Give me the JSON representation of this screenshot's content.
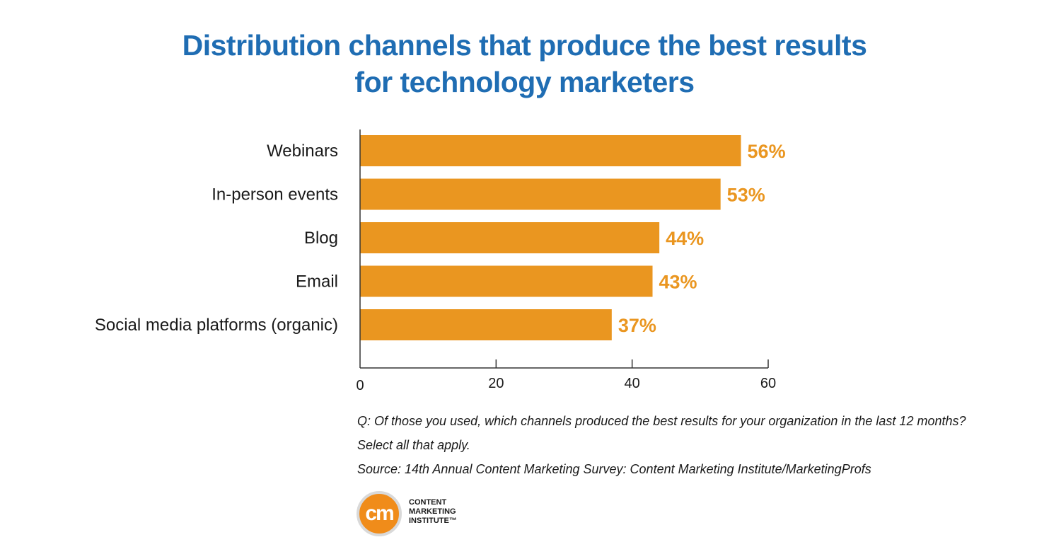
{
  "title": {
    "line1": "Distribution channels that produce the best results",
    "line2": "for technology marketers"
  },
  "colors": {
    "title": "#1f6db3",
    "bar": "#ea9620",
    "value_label": "#ea9620",
    "axis": "#333333"
  },
  "chart_data": {
    "type": "bar",
    "orientation": "horizontal",
    "categories": [
      "Webinars",
      "In-person events",
      "Blog",
      "Email",
      "Social media platforms (organic)"
    ],
    "values": [
      56,
      53,
      44,
      43,
      37
    ],
    "value_labels": [
      "56%",
      "53%",
      "44%",
      "43%",
      "37%"
    ],
    "xlim": [
      0,
      60
    ],
    "xticks": [
      0,
      20,
      40,
      60
    ],
    "grid": false
  },
  "notes": {
    "question": "Q: Of those you used, which channels produced the best results for your organization in the last 12 months?",
    "instruction": "Select all that apply.",
    "source": "Source: 14th Annual Content Marketing Survey: Content Marketing Institute/MarketingProfs"
  },
  "logo": {
    "mark": "cm",
    "line1": "CONTENT",
    "line2": "MARKETING",
    "line3": "INSTITUTE™"
  }
}
